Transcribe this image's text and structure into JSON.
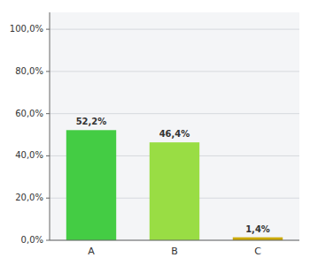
{
  "chart_data": {
    "type": "bar",
    "categories": [
      "A",
      "B",
      "C"
    ],
    "values": [
      52.2,
      46.4,
      1.4
    ],
    "value_labels": [
      "52,2%",
      "46,4%",
      "1,4%"
    ],
    "data_labels": true,
    "colors": [
      "#44cc44",
      "#99dd44",
      "#ccaa00"
    ],
    "ylim": [
      0,
      108
    ],
    "yticks": [
      {
        "value": 0,
        "label": "0,0%"
      },
      {
        "value": 20,
        "label": "20,0%"
      },
      {
        "value": 40,
        "label": "40,0%"
      },
      {
        "value": 60,
        "label": "60,0%"
      },
      {
        "value": 80,
        "label": "80,0%"
      },
      {
        "value": 100,
        "label": "100,0%"
      }
    ],
    "grid": true
  }
}
